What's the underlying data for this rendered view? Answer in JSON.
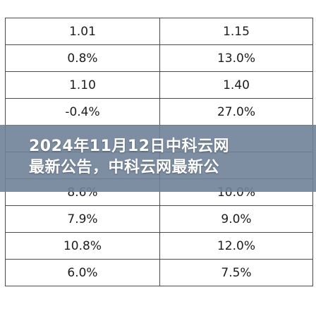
{
  "table": {
    "rows": [
      {
        "left": "1.01",
        "right": "1.15"
      },
      {
        "left": "0.8%",
        "right": "13.0%"
      },
      {
        "left": "1.10",
        "right": "1.40"
      },
      {
        "left": "-0.4%",
        "right": "27.0%"
      },
      {
        "left": "",
        "right": ""
      },
      {
        "left": "",
        "right": ""
      },
      {
        "left": "8.6%",
        "right": "10.0%"
      },
      {
        "left": "7.9%",
        "right": "9.0%"
      },
      {
        "left": "10.8%",
        "right": "12.0%"
      },
      {
        "left": "6.0%",
        "right": "7.5%"
      }
    ]
  },
  "banner": {
    "line1": "2024年11月12日中科云网",
    "line2": "最新公告，中科云网最新公"
  }
}
